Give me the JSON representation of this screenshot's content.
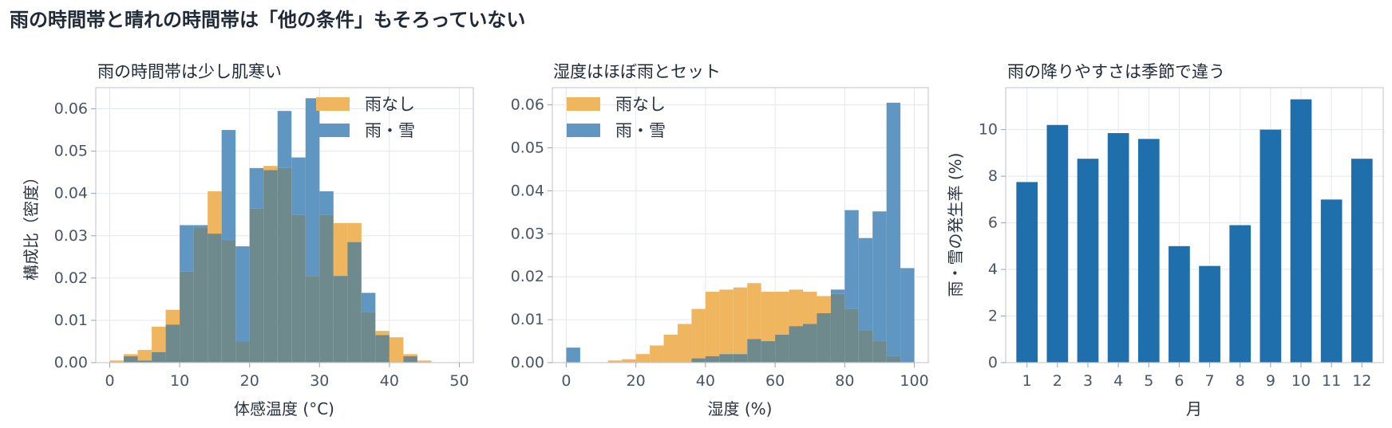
{
  "suptitle": "雨の時間帯と晴れの時間帯は「他の条件」もそろっていない",
  "colors": {
    "no_rain": "#f0b55f",
    "rain": "#5f96c2",
    "overlap": "#6e8a8c",
    "bar": "#1f6fad"
  },
  "chart_data": [
    {
      "type": "histogram",
      "title": "雨の時間帯は少し肌寒い",
      "xlabel": "体感温度 (°C)",
      "ylabel": "構成比（密度）",
      "xlim": [
        -2,
        52
      ],
      "ylim": [
        0,
        0.065
      ],
      "xticks": [
        0,
        10,
        20,
        30,
        40,
        50
      ],
      "yticks": [
        0.0,
        0.01,
        0.02,
        0.03,
        0.04,
        0.05,
        0.06
      ],
      "ytick_labels": [
        "0.00",
        "0.01",
        "0.02",
        "0.03",
        "0.04",
        "0.05",
        "0.06"
      ],
      "legend": {
        "position": "top-right"
      },
      "bins": [
        0,
        2,
        4,
        6,
        8,
        10,
        12,
        14,
        16,
        18,
        20,
        22,
        24,
        26,
        28,
        30,
        32,
        34,
        36,
        38,
        40,
        42,
        44,
        46
      ],
      "series": [
        {
          "name": "雨なし",
          "values": [
            0.0005,
            0.002,
            0.003,
            0.0085,
            0.0125,
            0.0215,
            0.032,
            0.0405,
            0.029,
            0.005,
            0.0365,
            0.0465,
            0.046,
            0.035,
            0.0205,
            0.035,
            0.033,
            0.033,
            0.012,
            0.0075,
            0.006,
            0.002,
            0.0005
          ]
        },
        {
          "name": "雨・雪",
          "values": [
            0.0,
            0.0015,
            0.0005,
            0.0025,
            0.009,
            0.0325,
            0.0325,
            0.0305,
            0.055,
            0.0275,
            0.046,
            0.0455,
            0.0595,
            0.0485,
            0.0625,
            0.0405,
            0.0205,
            0.0285,
            0.0165,
            0.0065,
            0.0,
            0.0015,
            0.0
          ]
        }
      ]
    },
    {
      "type": "histogram",
      "title": "湿度はほぼ雨とセット",
      "xlabel": "湿度 (%)",
      "ylabel": "",
      "xlim": [
        -4,
        104
      ],
      "ylim": [
        0,
        0.064
      ],
      "xticks": [
        0,
        20,
        40,
        60,
        80,
        100
      ],
      "yticks": [
        0.0,
        0.01,
        0.02,
        0.03,
        0.04,
        0.05,
        0.06
      ],
      "ytick_labels": [
        "0.00",
        "0.01",
        "0.02",
        "0.03",
        "0.04",
        "0.05",
        "0.06"
      ],
      "legend": {
        "position": "top-left"
      },
      "bins": [
        0,
        4,
        8,
        12,
        16,
        20,
        24,
        28,
        32,
        36,
        40,
        44,
        48,
        52,
        56,
        60,
        64,
        68,
        72,
        76,
        80,
        84,
        88,
        92,
        96,
        100
      ],
      "series": [
        {
          "name": "雨なし",
          "values": [
            0.0,
            0.0,
            0.0,
            0.0005,
            0.0008,
            0.002,
            0.004,
            0.0065,
            0.009,
            0.0125,
            0.0165,
            0.017,
            0.0175,
            0.0185,
            0.0165,
            0.0165,
            0.017,
            0.0165,
            0.0155,
            0.016,
            0.0125,
            0.0075,
            0.005,
            0.0015,
            0.0
          ]
        },
        {
          "name": "雨・雪",
          "values": [
            0.0035,
            0.0,
            0.0,
            0.0,
            0.0,
            0.0,
            0.0,
            0.0,
            0.0,
            0.001,
            0.0015,
            0.002,
            0.002,
            0.0055,
            0.005,
            0.0065,
            0.0085,
            0.009,
            0.0115,
            0.017,
            0.0355,
            0.029,
            0.0352,
            0.0605,
            0.022
          ]
        }
      ]
    },
    {
      "type": "bar",
      "title": "雨の降りやすさは季節で違う",
      "xlabel": "月",
      "ylabel": "雨・雪の発生率 (%)",
      "ylim": [
        0,
        11.8
      ],
      "yticks": [
        0,
        2,
        4,
        6,
        8,
        10
      ],
      "categories": [
        "1",
        "2",
        "3",
        "4",
        "5",
        "6",
        "7",
        "8",
        "9",
        "10",
        "11",
        "12"
      ],
      "values": [
        7.75,
        10.2,
        8.75,
        9.85,
        9.6,
        5.0,
        4.15,
        5.9,
        10.0,
        11.3,
        7.0,
        8.75
      ]
    }
  ]
}
